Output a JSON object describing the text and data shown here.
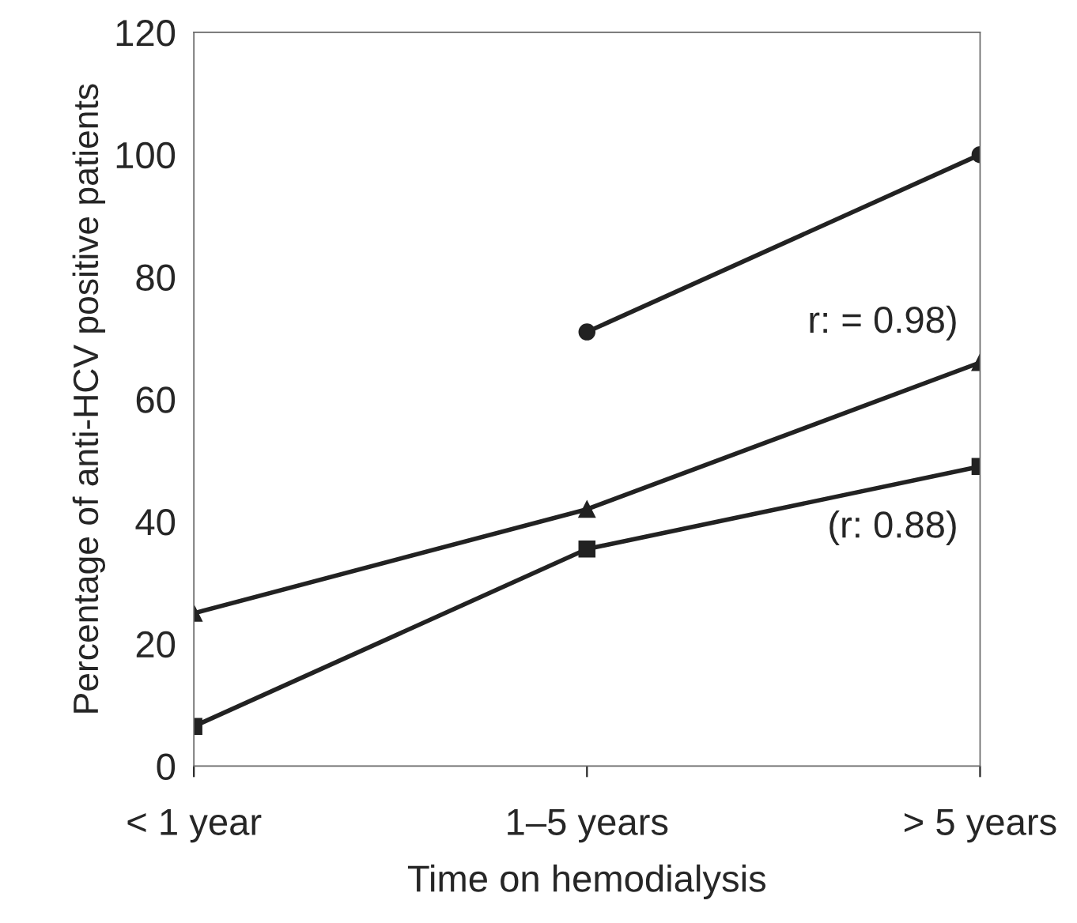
{
  "chart_data": {
    "type": "line",
    "xlabel": "Time on hemodialysis",
    "ylabel": "Percentage of anti-HCV positive patients",
    "categories": [
      "< 1 year",
      "1–5 years",
      "> 5 years"
    ],
    "series": [
      {
        "color": "#222222",
        "marker": "circle",
        "values": [
          null,
          71,
          100
        ]
      },
      {
        "color": "#222222",
        "marker": "triangle",
        "values": [
          25,
          42,
          66
        ]
      },
      {
        "color": "#222222",
        "marker": "square",
        "values": [
          6.5,
          35.5,
          49
        ]
      }
    ],
    "annotations": [
      {
        "text": "r: = 0.98)",
        "x": "> 5 years",
        "y": 66
      },
      {
        "text": "(r: 0.88)",
        "x": "> 5 years",
        "y": 49
      }
    ],
    "ylim": [
      0,
      120
    ],
    "yticks": [
      0,
      20,
      40,
      60,
      80,
      100,
      120
    ],
    "grid": false,
    "line_style": "solid"
  }
}
